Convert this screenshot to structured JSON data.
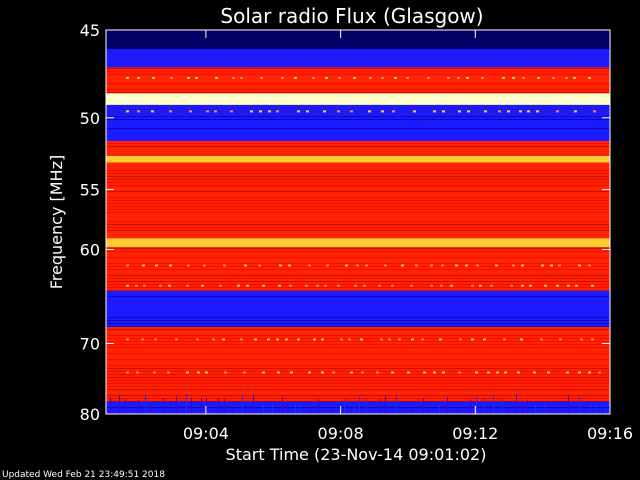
{
  "chart_data": {
    "type": "heatmap",
    "title": "Solar radio Flux (Glasgow)",
    "xlabel": "Start Time (23-Nov-14 09:01:02)",
    "ylabel": "Frequency [MHz]",
    "x_ticks": [
      "09:04",
      "09:08",
      "09:12",
      "09:16"
    ],
    "y_ticks": [
      "45",
      "50",
      "55",
      "60",
      "70",
      "80"
    ],
    "y_tick_values": [
      45,
      50,
      55,
      60,
      70,
      80
    ],
    "xlim": [
      "09:01:02",
      "09:16:00"
    ],
    "ylim": [
      80,
      45
    ],
    "frequency_bands": [
      {
        "from": 45,
        "to": 47,
        "level": "low"
      },
      {
        "from": 47,
        "to": 48.5,
        "level": "medium"
      },
      {
        "from": 48.5,
        "to": 49.2,
        "level": "saturated"
      },
      {
        "from": 49.2,
        "to": 51.5,
        "level": "low"
      },
      {
        "from": 51.5,
        "to": 52.5,
        "level": "medium"
      },
      {
        "from": 52.5,
        "to": 53,
        "level": "high"
      },
      {
        "from": 53,
        "to": 59,
        "level": "medium"
      },
      {
        "from": 59,
        "to": 59.8,
        "level": "high"
      },
      {
        "from": 59.8,
        "to": 64,
        "level": "medium"
      },
      {
        "from": 64,
        "to": 68,
        "level": "low"
      },
      {
        "from": 68,
        "to": 78,
        "level": "medium"
      },
      {
        "from": 78,
        "to": 80,
        "level": "low"
      }
    ],
    "colormap": [
      "#000066",
      "#1a1aff",
      "#a00000",
      "#ff2200",
      "#ffcc33",
      "#ffffcc"
    ],
    "grid": false,
    "legend": "none"
  },
  "footer": {
    "updated": "Updated Wed Feb 21 23:49:51 2018"
  }
}
